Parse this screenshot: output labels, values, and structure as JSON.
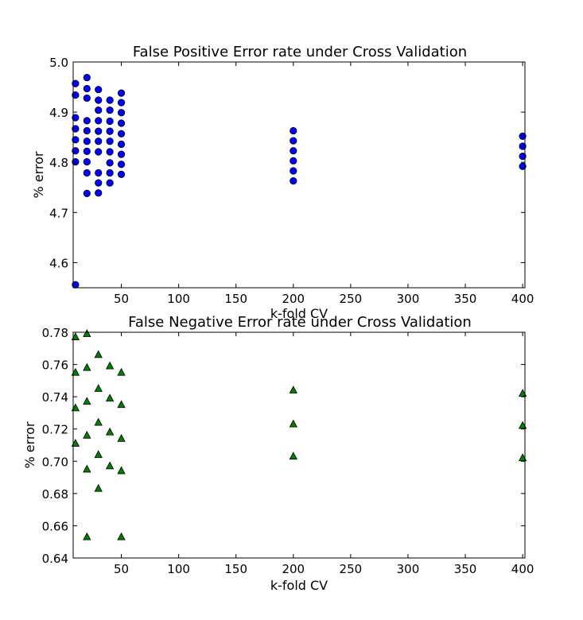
{
  "chart_data": [
    {
      "type": "scatter",
      "title": "False Positive Error rate under Cross Validation",
      "xlabel": "k-fold CV",
      "ylabel": "% error",
      "xlim": [
        8,
        402
      ],
      "ylim": [
        4.55,
        5.0
      ],
      "xticks": [
        "50",
        "100",
        "150",
        "200",
        "250",
        "300",
        "350",
        "400"
      ],
      "yticks": [
        "4.6",
        "4.7",
        "4.8",
        "4.9",
        "5.0"
      ],
      "marker": "circle",
      "color": "#0000ff",
      "grid": false,
      "series": [
        {
          "points": [
            [
              10,
              4.957
            ],
            [
              10,
              4.934
            ],
            [
              10,
              4.889
            ],
            [
              10,
              4.867
            ],
            [
              10,
              4.845
            ],
            [
              10,
              4.823
            ],
            [
              10,
              4.801
            ],
            [
              10,
              4.556
            ],
            [
              20,
              4.969
            ],
            [
              20,
              4.947
            ],
            [
              20,
              4.928
            ],
            [
              20,
              4.883
            ],
            [
              20,
              4.863
            ],
            [
              20,
              4.842
            ],
            [
              20,
              4.822
            ],
            [
              20,
              4.801
            ],
            [
              20,
              4.779
            ],
            [
              20,
              4.738
            ],
            [
              30,
              4.945
            ],
            [
              30,
              4.924
            ],
            [
              30,
              4.904
            ],
            [
              30,
              4.883
            ],
            [
              30,
              4.862
            ],
            [
              30,
              4.842
            ],
            [
              30,
              4.821
            ],
            [
              30,
              4.779
            ],
            [
              30,
              4.759
            ],
            [
              30,
              4.739
            ],
            [
              40,
              4.924
            ],
            [
              40,
              4.904
            ],
            [
              40,
              4.882
            ],
            [
              40,
              4.862
            ],
            [
              40,
              4.842
            ],
            [
              40,
              4.821
            ],
            [
              40,
              4.799
            ],
            [
              40,
              4.779
            ],
            [
              40,
              4.759
            ],
            [
              50,
              4.938
            ],
            [
              50,
              4.919
            ],
            [
              50,
              4.899
            ],
            [
              50,
              4.878
            ],
            [
              50,
              4.857
            ],
            [
              50,
              4.836
            ],
            [
              50,
              4.816
            ],
            [
              50,
              4.796
            ],
            [
              50,
              4.776
            ],
            [
              200,
              4.863
            ],
            [
              200,
              4.843
            ],
            [
              200,
              4.823
            ],
            [
              200,
              4.803
            ],
            [
              200,
              4.783
            ],
            [
              200,
              4.763
            ],
            [
              400,
              4.852
            ],
            [
              400,
              4.832
            ],
            [
              400,
              4.812
            ],
            [
              400,
              4.792
            ]
          ]
        }
      ]
    },
    {
      "type": "scatter",
      "title": "False Negative Error rate under Cross Validation",
      "xlabel": "k-fold CV",
      "ylabel": "% error",
      "xlim": [
        8,
        402
      ],
      "ylim": [
        0.64,
        0.78
      ],
      "xticks": [
        "50",
        "100",
        "150",
        "200",
        "250",
        "300",
        "350",
        "400"
      ],
      "yticks": [
        "0.64",
        "0.66",
        "0.68",
        "0.70",
        "0.72",
        "0.74",
        "0.76",
        "0.78"
      ],
      "marker": "triangle",
      "color": "#008000",
      "grid": false,
      "series": [
        {
          "points": [
            [
              10,
              0.777
            ],
            [
              10,
              0.755
            ],
            [
              10,
              0.733
            ],
            [
              10,
              0.711
            ],
            [
              20,
              0.779
            ],
            [
              20,
              0.758
            ],
            [
              20,
              0.737
            ],
            [
              20,
              0.716
            ],
            [
              20,
              0.695
            ],
            [
              20,
              0.653
            ],
            [
              30,
              0.766
            ],
            [
              30,
              0.745
            ],
            [
              30,
              0.724
            ],
            [
              30,
              0.704
            ],
            [
              30,
              0.683
            ],
            [
              40,
              0.759
            ],
            [
              40,
              0.739
            ],
            [
              40,
              0.718
            ],
            [
              40,
              0.697
            ],
            [
              50,
              0.755
            ],
            [
              50,
              0.735
            ],
            [
              50,
              0.714
            ],
            [
              50,
              0.694
            ],
            [
              50,
              0.653
            ],
            [
              200,
              0.744
            ],
            [
              200,
              0.723
            ],
            [
              200,
              0.703
            ],
            [
              400,
              0.742
            ],
            [
              400,
              0.722
            ],
            [
              400,
              0.702
            ]
          ]
        }
      ]
    }
  ]
}
